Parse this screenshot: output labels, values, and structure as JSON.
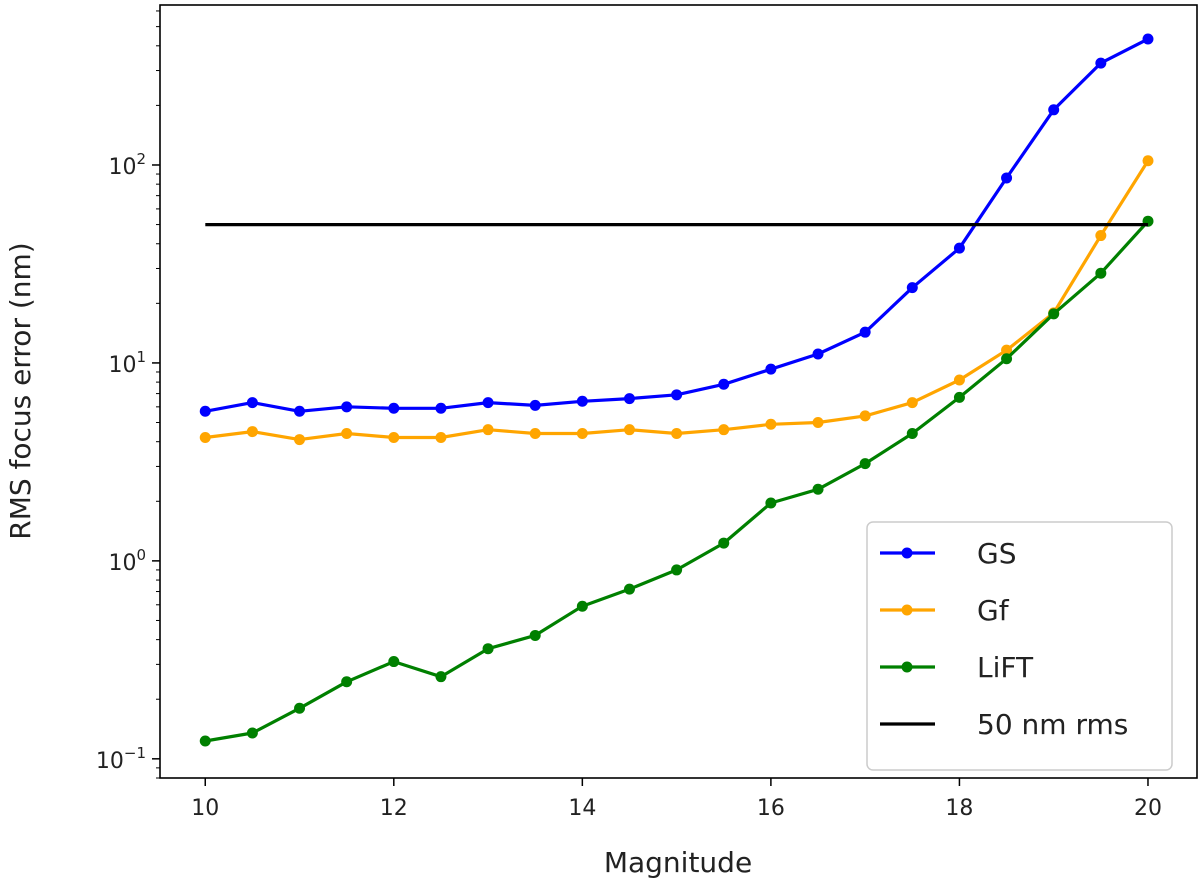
{
  "chart_data": {
    "type": "line",
    "title": "",
    "xlabel": "Magnitude",
    "ylabel": "RMS focus error (nm)",
    "yscale": "log",
    "xlim": [
      9.52,
      20.52
    ],
    "ylim": [
      0.08,
      643
    ],
    "grid": false,
    "legend_position": "bottom-right",
    "x_ticks": [
      10,
      12,
      14,
      16,
      18,
      20
    ],
    "y_ticks": [
      {
        "base": "10",
        "exp": "−1",
        "value": 0.1
      },
      {
        "base": "10",
        "exp": "0",
        "value": 1
      },
      {
        "base": "10",
        "exp": "1",
        "value": 10
      },
      {
        "base": "10",
        "exp": "2",
        "value": 100
      }
    ],
    "x": [
      10,
      10.5,
      11,
      11.5,
      12,
      12.5,
      13,
      13.5,
      14,
      14.5,
      15,
      15.5,
      16,
      16.5,
      17,
      17.5,
      18,
      18.5,
      19,
      19.5,
      20
    ],
    "series": [
      {
        "name": "GS",
        "color": "#0000ff",
        "marker": "circle",
        "values": [
          5.7,
          6.3,
          5.7,
          6.0,
          5.9,
          5.9,
          6.3,
          6.1,
          6.4,
          6.6,
          6.9,
          7.8,
          9.3,
          11.1,
          14.3,
          24,
          38,
          86,
          190,
          327,
          433
        ]
      },
      {
        "name": "Gf",
        "color": "#ffa500",
        "marker": "circle",
        "values": [
          4.2,
          4.5,
          4.1,
          4.4,
          4.2,
          4.2,
          4.6,
          4.4,
          4.4,
          4.6,
          4.4,
          4.6,
          4.9,
          5.0,
          5.4,
          6.3,
          8.2,
          11.6,
          17.9,
          44,
          105
        ]
      },
      {
        "name": "LiFT",
        "color": "#008000",
        "marker": "circle",
        "values": [
          0.123,
          0.135,
          0.18,
          0.245,
          0.31,
          0.26,
          0.36,
          0.42,
          0.59,
          0.72,
          0.9,
          1.23,
          1.96,
          2.3,
          3.1,
          4.4,
          6.7,
          10.5,
          17.7,
          28.4,
          52
        ]
      },
      {
        "name": "50 nm rms",
        "color": "#000000",
        "marker": "none",
        "x": [
          10,
          20
        ],
        "values": [
          50,
          50
        ]
      }
    ]
  }
}
